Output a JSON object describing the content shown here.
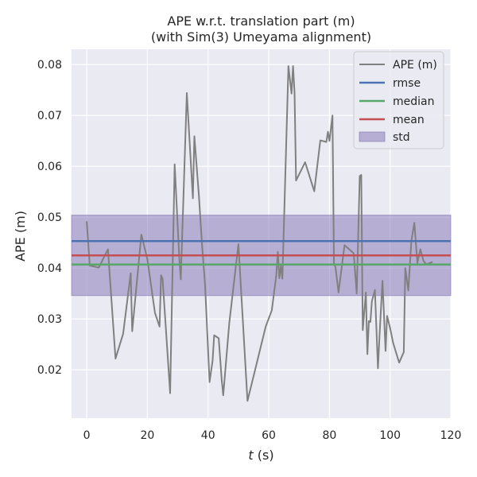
{
  "chart_data": {
    "type": "line",
    "title_line1": "APE w.r.t. translation part (m)",
    "title_line2": "(with Sim(3) Umeyama alignment)",
    "xlabel_var": "t",
    "xlabel_unit": " (s)",
    "ylabel": "APE (m)",
    "xlim": [
      -5,
      120
    ],
    "ylim": [
      0.0105,
      0.083
    ],
    "xticks": [
      0,
      20,
      40,
      60,
      80,
      100,
      120
    ],
    "yticks": [
      0.02,
      0.03,
      0.04,
      0.05,
      0.06,
      0.07,
      0.08
    ],
    "ytick_labels": [
      "0.02",
      "0.03",
      "0.04",
      "0.05",
      "0.06",
      "0.07",
      "0.08"
    ],
    "grid": true,
    "legend_position": "top-right",
    "legend": [
      "APE (m)",
      "rmse",
      "median",
      "mean",
      "std"
    ],
    "colors": {
      "ape": "#808080",
      "rmse": "#4c72b0",
      "median": "#55a868",
      "mean": "#c44e52",
      "std": "#8172b3",
      "background": "#eaeaf2"
    },
    "stats": {
      "rmse": 0.0453,
      "median": 0.0407,
      "mean": 0.0425,
      "std_low": 0.0346,
      "std_high": 0.0504
    },
    "series": [
      {
        "name": "APE (m)",
        "x": [
          0,
          1,
          4,
          7,
          9.5,
          12,
          14.5,
          15,
          18,
          20,
          22.5,
          24,
          24.5,
          25,
          27.5,
          29,
          30.5,
          31,
          33,
          35,
          35.5,
          37,
          38,
          39,
          40.5,
          41.5,
          42,
          43.5,
          44.5,
          45,
          47,
          50,
          53,
          56,
          59,
          61,
          62.5,
          63,
          63.5,
          64,
          64.5,
          66.5,
          67.5,
          68,
          68.5,
          69,
          72,
          75,
          77,
          79,
          79.5,
          80,
          81,
          81.5,
          82,
          83,
          85,
          88,
          89,
          90,
          90.5,
          91,
          92,
          92.5,
          93,
          93.5,
          94,
          95,
          96,
          96.5,
          97.5,
          98.5,
          99,
          100,
          101,
          103,
          104.5,
          105,
          106,
          107,
          108,
          109,
          110,
          111,
          112,
          113,
          114
        ],
        "y": [
          0.0492,
          0.0405,
          0.0401,
          0.0437,
          0.0222,
          0.0271,
          0.039,
          0.0276,
          0.0466,
          0.0417,
          0.0312,
          0.0285,
          0.0386,
          0.0379,
          0.0154,
          0.0604,
          0.042,
          0.0378,
          0.0744,
          0.0537,
          0.0659,
          0.054,
          0.0446,
          0.0368,
          0.0176,
          0.0218,
          0.0268,
          0.0262,
          0.018,
          0.015,
          0.0292,
          0.0447,
          0.0139,
          0.0212,
          0.0285,
          0.0317,
          0.0387,
          0.0432,
          0.038,
          0.0404,
          0.0379,
          0.0797,
          0.0743,
          0.0797,
          0.0745,
          0.0572,
          0.0608,
          0.0551,
          0.0651,
          0.0648,
          0.0668,
          0.065,
          0.07,
          0.0408,
          0.0402,
          0.0352,
          0.0445,
          0.0429,
          0.035,
          0.0581,
          0.0583,
          0.0278,
          0.0352,
          0.0231,
          0.0296,
          0.0294,
          0.0335,
          0.0357,
          0.0203,
          0.0264,
          0.0375,
          0.0237,
          0.0306,
          0.0282,
          0.0253,
          0.0214,
          0.0235,
          0.04,
          0.0356,
          0.0453,
          0.0489,
          0.041,
          0.0437,
          0.0414,
          0.0407,
          0.041,
          0.0412
        ]
      }
    ]
  }
}
